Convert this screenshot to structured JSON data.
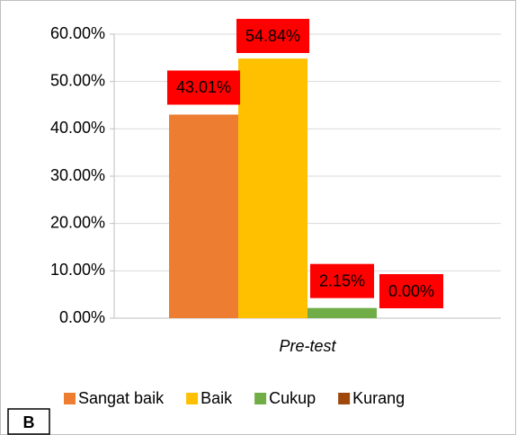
{
  "chart_data": {
    "type": "bar",
    "categories": [
      "Pre-test"
    ],
    "series": [
      {
        "name": "Sangat baik",
        "color": "#ed7d31",
        "values": [
          43.01
        ],
        "value_labels": [
          "43.01%"
        ]
      },
      {
        "name": "Baik",
        "color": "#ffc000",
        "values": [
          54.84
        ],
        "value_labels": [
          "54.84%"
        ]
      },
      {
        "name": "Cukup",
        "color": "#70ad47",
        "values": [
          2.15
        ],
        "value_labels": [
          "2.15%"
        ]
      },
      {
        "name": "Kurang",
        "color": "#9e480e",
        "values": [
          0.0
        ],
        "value_labels": [
          "0.00%"
        ]
      }
    ],
    "ylim": [
      0,
      60
    ],
    "yticks": [
      {
        "value": 0,
        "label": "0.00%"
      },
      {
        "value": 10,
        "label": "10.00%"
      },
      {
        "value": 20,
        "label": "20.00%"
      },
      {
        "value": 30,
        "label": "30.00%"
      },
      {
        "value": 40,
        "label": "40.00%"
      },
      {
        "value": 50,
        "label": "50.00%"
      },
      {
        "value": 60,
        "label": "60.00%"
      }
    ],
    "grid": true,
    "legend": "bottom",
    "label_box_color": "#ff0000",
    "panel_label": "B"
  }
}
